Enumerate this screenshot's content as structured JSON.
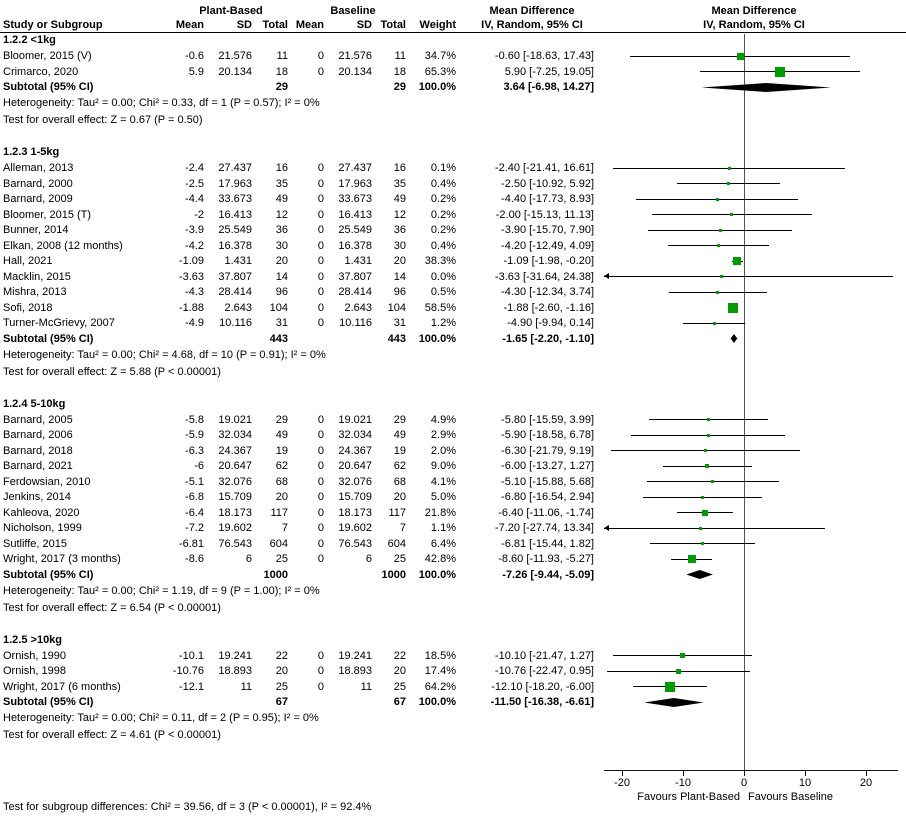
{
  "header": {
    "plant_based": "Plant-Based",
    "baseline": "Baseline",
    "md": "Mean Difference",
    "iv": "IV, Random, 95% CI",
    "study": "Study or Subgroup",
    "mean": "Mean",
    "sd": "SD",
    "total": "Total",
    "weight": "Weight"
  },
  "chart_data": {
    "type": "forest",
    "effect_measure": "Mean Difference",
    "model": "IV, Random, 95% CI",
    "axis": {
      "min": -25,
      "max": 25,
      "ticks": [
        -20,
        -10,
        0,
        10,
        20
      ],
      "favours_left": "Favours Plant-Based",
      "favours_right": "Favours Baseline"
    },
    "colors": {
      "square": "#009B00",
      "ci_line": "#000000",
      "diamond": "#000000"
    },
    "subgroups": [
      {
        "title": "1.2.2 <1kg",
        "studies": [
          {
            "label": "Bloomer, 2015 (V)",
            "m1": "-0.6",
            "s1": "21.576",
            "n1": "11",
            "m2": "0",
            "s2": "21.576",
            "n2": "11",
            "w": "34.7%",
            "ci": "-0.60 [-18.63, 17.43]",
            "e": -0.6,
            "lo": -18.63,
            "hi": 17.43,
            "wt": 34.7
          },
          {
            "label": "Crimarco, 2020",
            "m1": "5.9",
            "s1": "20.134",
            "n1": "18",
            "m2": "0",
            "s2": "20.134",
            "n2": "18",
            "w": "65.3%",
            "ci": "5.90 [-7.25, 19.05]",
            "e": 5.9,
            "lo": -7.25,
            "hi": 19.05,
            "wt": 65.3
          }
        ],
        "subtotal": {
          "label": "Subtotal (95% CI)",
          "n1": "29",
          "n2": "29",
          "w": "100.0%",
          "ci": "3.64 [-6.98, 14.27]",
          "e": 3.64,
          "lo": -6.98,
          "hi": 14.27
        },
        "heterogeneity": "Heterogeneity: Tau² = 0.00; Chi² = 0.33, df = 1 (P = 0.57); I² = 0%",
        "overall": "Test for overall effect: Z = 0.67 (P = 0.50)"
      },
      {
        "title": "1.2.3 1-5kg",
        "studies": [
          {
            "label": "Alleman, 2013",
            "m1": "-2.4",
            "s1": "27.437",
            "n1": "16",
            "m2": "0",
            "s2": "27.437",
            "n2": "16",
            "w": "0.1%",
            "ci": "-2.40 [-21.41, 16.61]",
            "e": -2.4,
            "lo": -21.41,
            "hi": 16.61,
            "wt": 0.1
          },
          {
            "label": "Barnard, 2000",
            "m1": "-2.5",
            "s1": "17.963",
            "n1": "35",
            "m2": "0",
            "s2": "17.963",
            "n2": "35",
            "w": "0.4%",
            "ci": "-2.50 [-10.92, 5.92]",
            "e": -2.5,
            "lo": -10.92,
            "hi": 5.92,
            "wt": 0.4
          },
          {
            "label": "Barnard, 2009",
            "m1": "-4.4",
            "s1": "33.673",
            "n1": "49",
            "m2": "0",
            "s2": "33.673",
            "n2": "49",
            "w": "0.2%",
            "ci": "-4.40 [-17.73, 8.93]",
            "e": -4.4,
            "lo": -17.73,
            "hi": 8.93,
            "wt": 0.2
          },
          {
            "label": "Bloomer, 2015 (T)",
            "m1": "-2",
            "s1": "16.413",
            "n1": "12",
            "m2": "0",
            "s2": "16.413",
            "n2": "12",
            "w": "0.2%",
            "ci": "-2.00 [-15.13, 11.13]",
            "e": -2,
            "lo": -15.13,
            "hi": 11.13,
            "wt": 0.2
          },
          {
            "label": "Bunner, 2014",
            "m1": "-3.9",
            "s1": "25.549",
            "n1": "36",
            "m2": "0",
            "s2": "25.549",
            "n2": "36",
            "w": "0.2%",
            "ci": "-3.90 [-15.70, 7.90]",
            "e": -3.9,
            "lo": -15.7,
            "hi": 7.9,
            "wt": 0.2
          },
          {
            "label": "Elkan, 2008 (12 months)",
            "m1": "-4.2",
            "s1": "16.378",
            "n1": "30",
            "m2": "0",
            "s2": "16.378",
            "n2": "30",
            "w": "0.4%",
            "ci": "-4.20 [-12.49, 4.09]",
            "e": -4.2,
            "lo": -12.49,
            "hi": 4.09,
            "wt": 0.4
          },
          {
            "label": "Hall, 2021",
            "m1": "-1.09",
            "s1": "1.431",
            "n1": "20",
            "m2": "0",
            "s2": "1.431",
            "n2": "20",
            "w": "38.3%",
            "ci": "-1.09 [-1.98, -0.20]",
            "e": -1.09,
            "lo": -1.98,
            "hi": -0.2,
            "wt": 38.3
          },
          {
            "label": "Macklin, 2015",
            "m1": "-3.63",
            "s1": "37.807",
            "n1": "14",
            "m2": "0",
            "s2": "37.807",
            "n2": "14",
            "w": "0.0%",
            "ci": "-3.63 [-31.64, 24.38]",
            "e": -3.63,
            "lo": -31.64,
            "hi": 24.38,
            "wt": 0.0
          },
          {
            "label": "Mishra, 2013",
            "m1": "-4.3",
            "s1": "28.414",
            "n1": "96",
            "m2": "0",
            "s2": "28.414",
            "n2": "96",
            "w": "0.5%",
            "ci": "-4.30 [-12.34, 3.74]",
            "e": -4.3,
            "lo": -12.34,
            "hi": 3.74,
            "wt": 0.5
          },
          {
            "label": "Sofi, 2018",
            "m1": "-1.88",
            "s1": "2.643",
            "n1": "104",
            "m2": "0",
            "s2": "2.643",
            "n2": "104",
            "w": "58.5%",
            "ci": "-1.88 [-2.60, -1.16]",
            "e": -1.88,
            "lo": -2.6,
            "hi": -1.16,
            "wt": 58.5
          },
          {
            "label": "Turner-McGrievy, 2007",
            "m1": "-4.9",
            "s1": "10.116",
            "n1": "31",
            "m2": "0",
            "s2": "10.116",
            "n2": "31",
            "w": "1.2%",
            "ci": "-4.90 [-9.94, 0.14]",
            "e": -4.9,
            "lo": -9.94,
            "hi": 0.14,
            "wt": 1.2
          }
        ],
        "subtotal": {
          "label": "Subtotal (95% CI)",
          "n1": "443",
          "n2": "443",
          "w": "100.0%",
          "ci": "-1.65 [-2.20, -1.10]",
          "e": -1.65,
          "lo": -2.2,
          "hi": -1.1
        },
        "heterogeneity": "Heterogeneity: Tau² = 0.00; Chi² = 4.68, df = 10 (P = 0.91); I² = 0%",
        "overall": "Test for overall effect: Z = 5.88 (P < 0.00001)"
      },
      {
        "title": "1.2.4 5-10kg",
        "studies": [
          {
            "label": "Barnard, 2005",
            "m1": "-5.8",
            "s1": "19.021",
            "n1": "29",
            "m2": "0",
            "s2": "19.021",
            "n2": "29",
            "w": "4.9%",
            "ci": "-5.80 [-15.59, 3.99]",
            "e": -5.8,
            "lo": -15.59,
            "hi": 3.99,
            "wt": 4.9
          },
          {
            "label": "Barnard, 2006",
            "m1": "-5.9",
            "s1": "32.034",
            "n1": "49",
            "m2": "0",
            "s2": "32.034",
            "n2": "49",
            "w": "2.9%",
            "ci": "-5.90 [-18.58, 6.78]",
            "e": -5.9,
            "lo": -18.58,
            "hi": 6.78,
            "wt": 2.9
          },
          {
            "label": "Barnard, 2018",
            "m1": "-6.3",
            "s1": "24.367",
            "n1": "19",
            "m2": "0",
            "s2": "24.367",
            "n2": "19",
            "w": "2.0%",
            "ci": "-6.30 [-21.79, 9.19]",
            "e": -6.3,
            "lo": -21.79,
            "hi": 9.19,
            "wt": 2.0
          },
          {
            "label": "Barnard, 2021",
            "m1": "-6",
            "s1": "20.647",
            "n1": "62",
            "m2": "0",
            "s2": "20.647",
            "n2": "62",
            "w": "9.0%",
            "ci": "-6.00 [-13.27, 1.27]",
            "e": -6,
            "lo": -13.27,
            "hi": 1.27,
            "wt": 9.0
          },
          {
            "label": "Ferdowsian, 2010",
            "m1": "-5.1",
            "s1": "32.076",
            "n1": "68",
            "m2": "0",
            "s2": "32.076",
            "n2": "68",
            "w": "4.1%",
            "ci": "-5.10 [-15.88, 5.68]",
            "e": -5.1,
            "lo": -15.88,
            "hi": 5.68,
            "wt": 4.1
          },
          {
            "label": "Jenkins, 2014",
            "m1": "-6.8",
            "s1": "15.709",
            "n1": "20",
            "m2": "0",
            "s2": "15.709",
            "n2": "20",
            "w": "5.0%",
            "ci": "-6.80 [-16.54, 2.94]",
            "e": -6.8,
            "lo": -16.54,
            "hi": 2.94,
            "wt": 5.0
          },
          {
            "label": "Kahleova, 2020",
            "m1": "-6.4",
            "s1": "18.173",
            "n1": "117",
            "m2": "0",
            "s2": "18.173",
            "n2": "117",
            "w": "21.8%",
            "ci": "-6.40 [-11.06, -1.74]",
            "e": -6.4,
            "lo": -11.06,
            "hi": -1.74,
            "wt": 21.8
          },
          {
            "label": "Nicholson, 1999",
            "m1": "-7.2",
            "s1": "19.602",
            "n1": "7",
            "m2": "0",
            "s2": "19.602",
            "n2": "7",
            "w": "1.1%",
            "ci": "-7.20 [-27.74, 13.34]",
            "e": -7.2,
            "lo": -27.74,
            "hi": 13.34,
            "wt": 1.1
          },
          {
            "label": "Sutliffe, 2015",
            "m1": "-6.81",
            "s1": "76.543",
            "n1": "604",
            "m2": "0",
            "s2": "76.543",
            "n2": "604",
            "w": "6.4%",
            "ci": "-6.81 [-15.44, 1.82]",
            "e": -6.81,
            "lo": -15.44,
            "hi": 1.82,
            "wt": 6.4
          },
          {
            "label": "Wright, 2017 (3 months)",
            "m1": "-8.6",
            "s1": "6",
            "n1": "25",
            "m2": "0",
            "s2": "6",
            "n2": "25",
            "w": "42.8%",
            "ci": "-8.60 [-11.93, -5.27]",
            "e": -8.6,
            "lo": -11.93,
            "hi": -5.27,
            "wt": 42.8
          }
        ],
        "subtotal": {
          "label": "Subtotal (95% CI)",
          "n1": "1000",
          "n2": "1000",
          "w": "100.0%",
          "ci": "-7.26 [-9.44, -5.09]",
          "e": -7.26,
          "lo": -9.44,
          "hi": -5.09
        },
        "heterogeneity": "Heterogeneity: Tau² = 0.00; Chi² = 1.19, df = 9 (P = 1.00); I² = 0%",
        "overall": "Test for overall effect: Z = 6.54 (P < 0.00001)"
      },
      {
        "title": "1.2.5 >10kg",
        "studies": [
          {
            "label": "Ornish, 1990",
            "m1": "-10.1",
            "s1": "19.241",
            "n1": "22",
            "m2": "0",
            "s2": "19.241",
            "n2": "22",
            "w": "18.5%",
            "ci": "-10.10 [-21.47, 1.27]",
            "e": -10.1,
            "lo": -21.47,
            "hi": 1.27,
            "wt": 18.5
          },
          {
            "label": "Ornish, 1998",
            "m1": "-10.76",
            "s1": "18.893",
            "n1": "20",
            "m2": "0",
            "s2": "18.893",
            "n2": "20",
            "w": "17.4%",
            "ci": "-10.76 [-22.47, 0.95]",
            "e": -10.76,
            "lo": -22.47,
            "hi": 0.95,
            "wt": 17.4
          },
          {
            "label": "Wright, 2017 (6 months)",
            "m1": "-12.1",
            "s1": "11",
            "n1": "25",
            "m2": "0",
            "s2": "11",
            "n2": "25",
            "w": "64.2%",
            "ci": "-12.10 [-18.20, -6.00]",
            "e": -12.1,
            "lo": -18.2,
            "hi": -6.0,
            "wt": 64.2
          }
        ],
        "subtotal": {
          "label": "Subtotal (95% CI)",
          "n1": "67",
          "n2": "67",
          "w": "100.0%",
          "ci": "-11.50 [-16.38, -6.61]",
          "e": -11.5,
          "lo": -16.38,
          "hi": -6.61
        },
        "heterogeneity": "Heterogeneity: Tau² = 0.00; Chi² = 0.11, df = 2 (P = 0.95); I² = 0%",
        "overall": "Test for overall effect: Z = 4.61 (P < 0.00001)"
      }
    ],
    "footer": "Test for subgroup differences: Chi² = 39.56, df = 3 (P < 0.00001), I² = 92.4%"
  }
}
